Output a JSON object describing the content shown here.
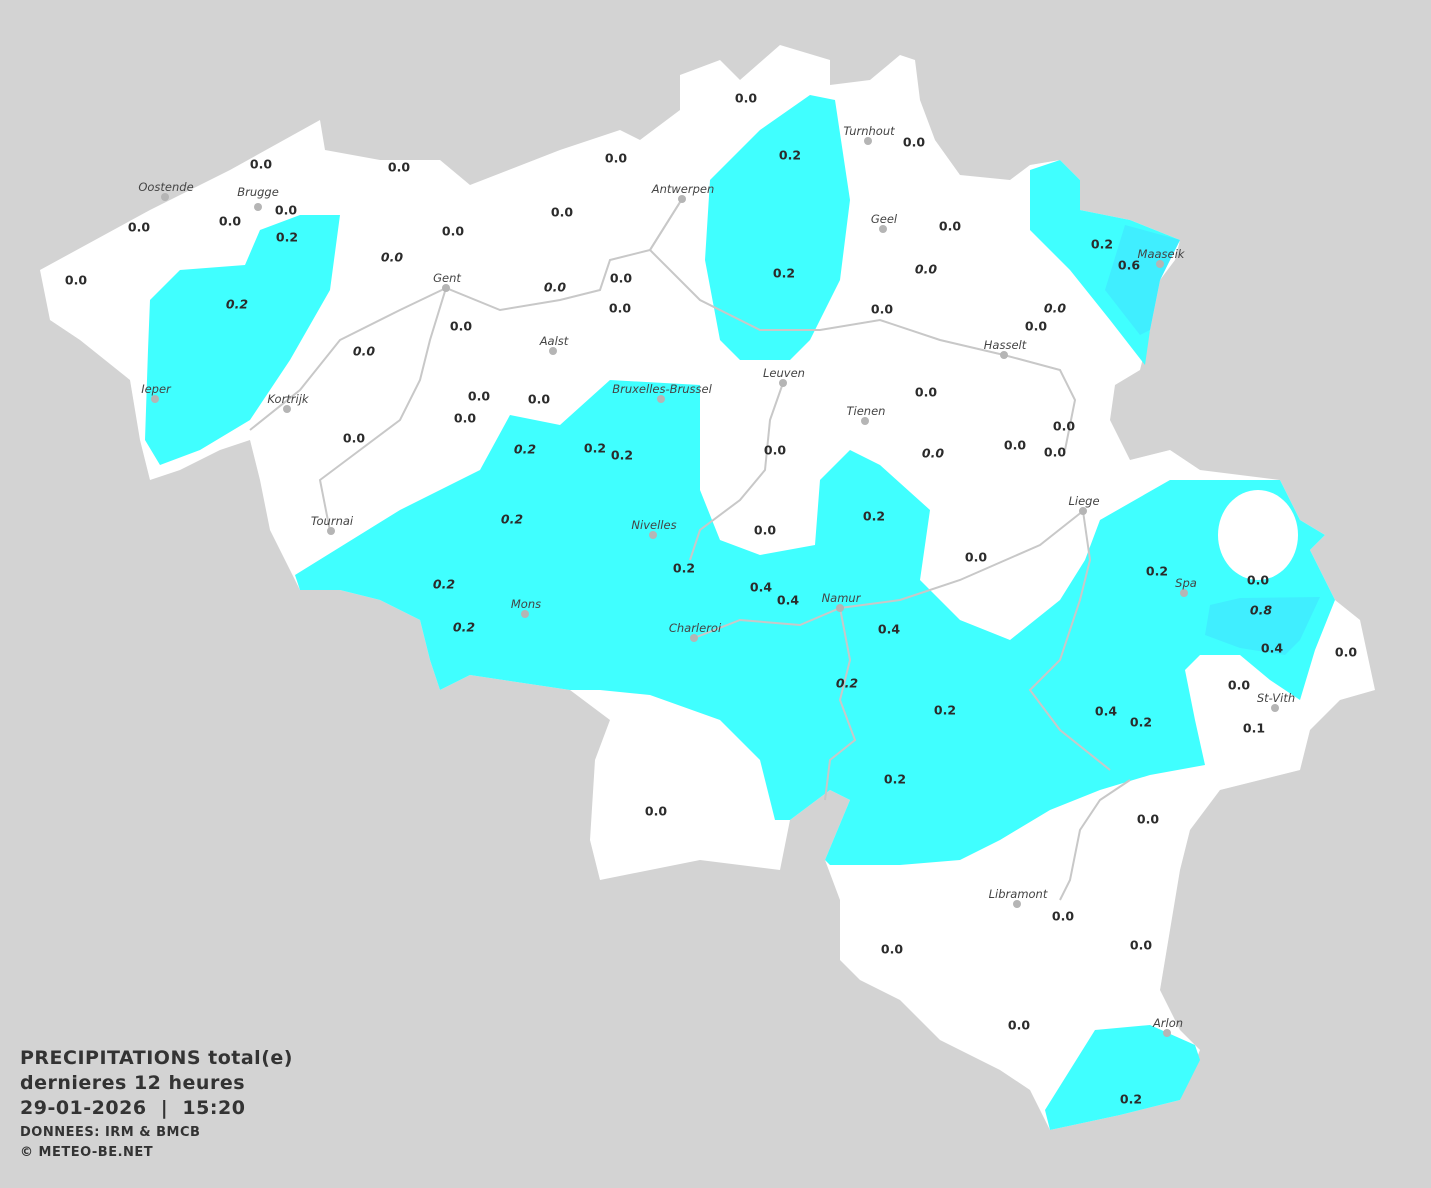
{
  "colors": {
    "background": "#d3d3d3",
    "land": "#ffffff",
    "precip_0_2": "#40ffff",
    "precip_0_5": "#40eeff",
    "border": "#c8c8c8"
  },
  "legend": {
    "title_line1": "PRECIPITATIONS total(e)",
    "title_line2": "dernieres 12 heures",
    "datetime": "29-01-2026  |  15:20",
    "source": "DONNEES: IRM & BMCB",
    "copyright": "© METEO-BE.NET"
  },
  "cities": [
    "Oostende",
    "Brugge",
    "Antwerpen",
    "Turnhout",
    "Geel",
    "Maaseik",
    "Gent",
    "Aalst",
    "Hasselt",
    "Leuven",
    "Ieper",
    "Kortrijk",
    "Bruxelles-Brussel",
    "Tienen",
    "Liege",
    "Tournai",
    "Nivelles",
    "Spa",
    "Namur",
    "Mons",
    "Charleroi",
    "St-Vith",
    "Libramont",
    "Arlon"
  ],
  "values": [
    {
      "v": "0.0"
    },
    {
      "v": "0.2"
    },
    {
      "v": "0.0"
    },
    {
      "v": "0.0"
    },
    {
      "v": "0.0"
    },
    {
      "v": "0.0"
    },
    {
      "v": "0.0"
    },
    {
      "v": "0.0"
    },
    {
      "v": "0.0"
    },
    {
      "v": "0.2"
    },
    {
      "v": "0.0"
    },
    {
      "v": "0.0"
    },
    {
      "v": "0.0"
    },
    {
      "v": "0.2"
    },
    {
      "v": "0.6"
    },
    {
      "v": "0.0",
      "italic": true
    },
    {
      "v": "0.2"
    },
    {
      "v": "0.0",
      "italic": true
    },
    {
      "v": "0.0"
    },
    {
      "v": "0.0"
    },
    {
      "v": "0.0",
      "italic": true
    },
    {
      "v": "0.2",
      "italic": true
    },
    {
      "v": "0.0"
    },
    {
      "v": "0.0"
    },
    {
      "v": "0.0",
      "italic": true
    },
    {
      "v": "0.0"
    },
    {
      "v": "0.0"
    },
    {
      "v": "0.0",
      "italic": true
    },
    {
      "v": "0.0"
    },
    {
      "v": "0.0"
    },
    {
      "v": "0.0"
    },
    {
      "v": "0.0"
    },
    {
      "v": "0.0"
    },
    {
      "v": "0.0"
    },
    {
      "v": "0.2",
      "italic": true
    },
    {
      "v": "0.2"
    },
    {
      "v": "0.2"
    },
    {
      "v": "0.0"
    },
    {
      "v": "0.0"
    },
    {
      "v": "0.0"
    },
    {
      "v": "0.0",
      "italic": true
    },
    {
      "v": "0.2",
      "italic": true
    },
    {
      "v": "0.2"
    },
    {
      "v": "0.0"
    },
    {
      "v": "0.0"
    },
    {
      "v": "0.2"
    },
    {
      "v": "0.2"
    },
    {
      "v": "0.0"
    },
    {
      "v": "0.2",
      "italic": true
    },
    {
      "v": "0.4"
    },
    {
      "v": "0.4"
    },
    {
      "v": "0.8",
      "italic": true
    },
    {
      "v": "0.2",
      "italic": true
    },
    {
      "v": "0.4"
    },
    {
      "v": "0.4"
    },
    {
      "v": "0.0"
    },
    {
      "v": "0.2",
      "italic": true
    },
    {
      "v": "0.0"
    },
    {
      "v": "0.2"
    },
    {
      "v": "0.4"
    },
    {
      "v": "0.2"
    },
    {
      "v": "0.1"
    },
    {
      "v": "0.2"
    },
    {
      "v": "0.0"
    },
    {
      "v": "0.0"
    },
    {
      "v": "0.0"
    },
    {
      "v": "0.0"
    },
    {
      "v": "0.0"
    },
    {
      "v": "0.0"
    },
    {
      "v": "0.2"
    }
  ]
}
